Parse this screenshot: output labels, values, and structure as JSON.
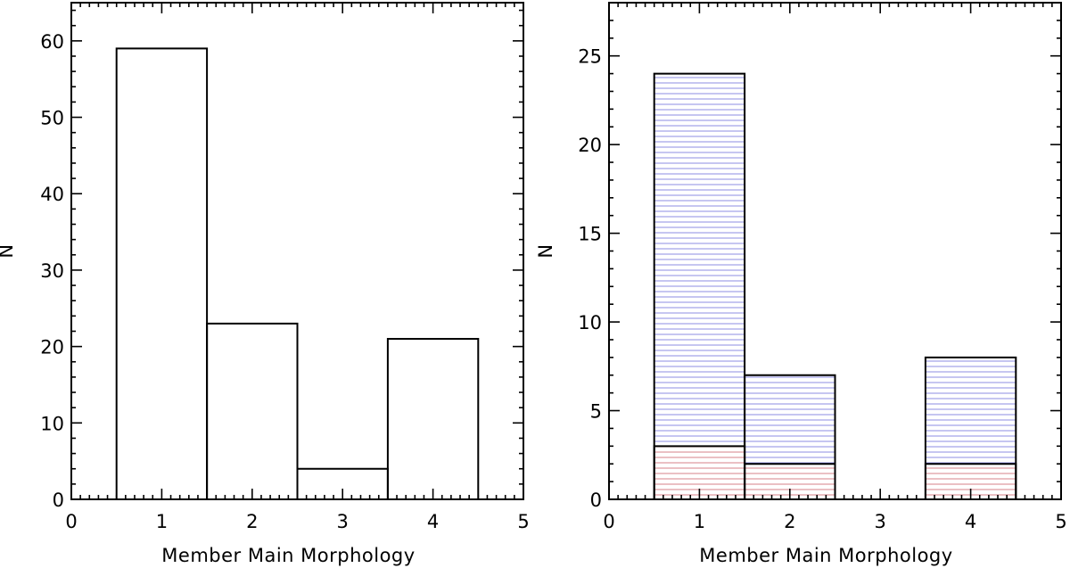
{
  "chart_data": [
    {
      "type": "bar",
      "style": "histogram-step",
      "bin_edges": [
        0.5,
        1.5,
        2.5,
        3.5,
        4.5
      ],
      "series": [
        {
          "values": [
            59,
            23,
            4,
            21
          ],
          "color": "#000000",
          "hatch": "none"
        }
      ],
      "xlabel": "Member Main Morphology",
      "ylabel": "N",
      "xlim": [
        0,
        5
      ],
      "ylim": [
        0,
        65
      ],
      "xticks": [
        0,
        1,
        2,
        3,
        4,
        5
      ],
      "yticks": [
        0,
        10,
        20,
        30,
        40,
        50,
        60
      ],
      "x_minor_step": 0.1,
      "y_minor_step": 2,
      "grid": false
    },
    {
      "type": "bar",
      "style": "histogram-step",
      "bin_edges": [
        0.5,
        1.5,
        2.5,
        3.5,
        4.5
      ],
      "series": [
        {
          "values": [
            24,
            7,
            0,
            8
          ],
          "color": "#000000",
          "hatch": "horizontal",
          "hatch_color": "#8080e0"
        },
        {
          "values": [
            3,
            2,
            0,
            2
          ],
          "color": "#000000",
          "hatch": "horizontal",
          "hatch_color": "#e08080"
        }
      ],
      "xlabel": "Member Main Morphology",
      "ylabel": "N",
      "xlim": [
        0,
        5
      ],
      "ylim": [
        0,
        28
      ],
      "xticks": [
        0,
        1,
        2,
        3,
        4,
        5
      ],
      "yticks": [
        0,
        5,
        10,
        15,
        20,
        25
      ],
      "x_minor_step": 0.1,
      "y_minor_step": 1,
      "grid": false
    }
  ]
}
